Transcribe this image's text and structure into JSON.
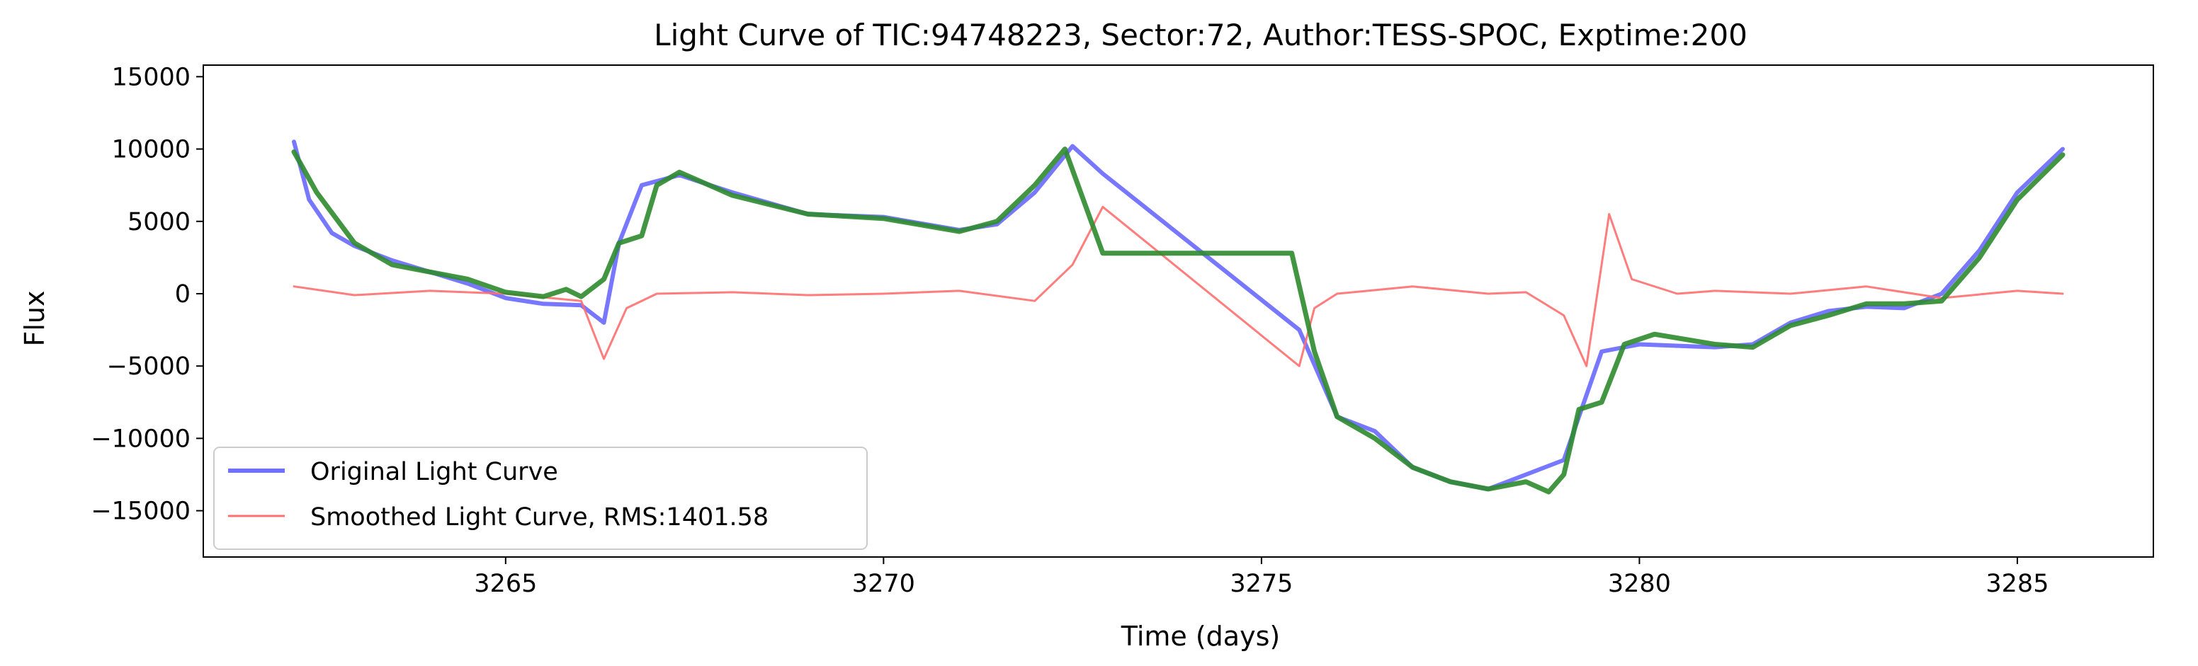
{
  "chart_data": {
    "type": "line",
    "title": "Light Curve of TIC:94748223, Sector:72, Author:TESS-SPOC, Exptime:200",
    "xlabel": "Time (days)",
    "ylabel": "Flux",
    "xlim": [
      3261.0,
      3286.8
    ],
    "ylim": [
      -18200,
      15800
    ],
    "xticks": [
      3265,
      3270,
      3275,
      3280,
      3285
    ],
    "xtick_labels": [
      "3265",
      "3270",
      "3275",
      "3280",
      "3285"
    ],
    "yticks": [
      -15000,
      -10000,
      -5000,
      0,
      5000,
      10000,
      15000
    ],
    "ytick_labels": [
      "−15000",
      "−10000",
      "−5000",
      "0",
      "5000",
      "10000",
      "15000"
    ],
    "grid": false,
    "legend_position": "lower-left",
    "series": [
      {
        "name": "Original Light Curve",
        "color": "#7070ff",
        "points": [
          [
            3262.2,
            10500
          ],
          [
            3262.4,
            6500
          ],
          [
            3262.7,
            4200
          ],
          [
            3263.0,
            3300
          ],
          [
            3263.5,
            2300
          ],
          [
            3264.0,
            1500
          ],
          [
            3264.5,
            700
          ],
          [
            3265.0,
            -300
          ],
          [
            3265.5,
            -700
          ],
          [
            3266.0,
            -800
          ],
          [
            3266.3,
            -2000
          ],
          [
            3266.5,
            3500
          ],
          [
            3266.8,
            7500
          ],
          [
            3267.3,
            8200
          ],
          [
            3268.0,
            7000
          ],
          [
            3269.0,
            5500
          ],
          [
            3270.0,
            5300
          ],
          [
            3271.0,
            4400
          ],
          [
            3271.5,
            4800
          ],
          [
            3272.0,
            7000
          ],
          [
            3272.5,
            10200
          ],
          [
            3272.9,
            8300
          ],
          [
            3275.5,
            -2500
          ],
          [
            3276.0,
            -8500
          ],
          [
            3276.5,
            -9500
          ],
          [
            3277.0,
            -12000
          ],
          [
            3277.5,
            -13000
          ],
          [
            3278.0,
            -13500
          ],
          [
            3278.5,
            -12500
          ],
          [
            3279.0,
            -11500
          ],
          [
            3279.3,
            -7000
          ],
          [
            3279.5,
            -4000
          ],
          [
            3280.0,
            -3500
          ],
          [
            3281.0,
            -3700
          ],
          [
            3281.5,
            -3500
          ],
          [
            3282.0,
            -2000
          ],
          [
            3282.5,
            -1200
          ],
          [
            3283.0,
            -900
          ],
          [
            3283.5,
            -1000
          ],
          [
            3284.0,
            0
          ],
          [
            3284.5,
            3000
          ],
          [
            3285.0,
            7000
          ],
          [
            3285.6,
            10000
          ]
        ]
      },
      {
        "name": "Smoothed Light Curve, RMS:1401.58",
        "color": "#ff6f6f",
        "points": [
          [
            3262.2,
            500
          ],
          [
            3263.0,
            -100
          ],
          [
            3264.0,
            200
          ],
          [
            3265.0,
            0
          ],
          [
            3266.0,
            -500
          ],
          [
            3266.3,
            -4500
          ],
          [
            3266.6,
            -1000
          ],
          [
            3267.0,
            0
          ],
          [
            3268.0,
            100
          ],
          [
            3269.0,
            -100
          ],
          [
            3270.0,
            0
          ],
          [
            3271.0,
            200
          ],
          [
            3272.0,
            -500
          ],
          [
            3272.5,
            2000
          ],
          [
            3272.9,
            6000
          ],
          [
            3275.5,
            -5000
          ],
          [
            3275.7,
            -1000
          ],
          [
            3276.0,
            0
          ],
          [
            3277.0,
            500
          ],
          [
            3278.0,
            0
          ],
          [
            3278.5,
            100
          ],
          [
            3279.0,
            -1500
          ],
          [
            3279.3,
            -5000
          ],
          [
            3279.6,
            5500
          ],
          [
            3279.9,
            1000
          ],
          [
            3280.5,
            0
          ],
          [
            3281.0,
            200
          ],
          [
            3282.0,
            0
          ],
          [
            3283.0,
            500
          ],
          [
            3284.0,
            -300
          ],
          [
            3285.0,
            200
          ],
          [
            3285.6,
            0
          ]
        ]
      },
      {
        "name": "",
        "color": "#2e8b2e",
        "points": [
          [
            3262.2,
            9800
          ],
          [
            3262.5,
            7000
          ],
          [
            3263.0,
            3500
          ],
          [
            3263.5,
            2000
          ],
          [
            3264.0,
            1500
          ],
          [
            3264.5,
            1000
          ],
          [
            3265.0,
            100
          ],
          [
            3265.5,
            -200
          ],
          [
            3265.8,
            300
          ],
          [
            3266.0,
            -200
          ],
          [
            3266.3,
            1000
          ],
          [
            3266.5,
            3500
          ],
          [
            3266.8,
            4000
          ],
          [
            3267.0,
            7500
          ],
          [
            3267.3,
            8400
          ],
          [
            3268.0,
            6800
          ],
          [
            3269.0,
            5500
          ],
          [
            3270.0,
            5200
          ],
          [
            3271.0,
            4300
          ],
          [
            3271.5,
            5000
          ],
          [
            3272.0,
            7500
          ],
          [
            3272.4,
            10000
          ],
          [
            3272.9,
            2800
          ],
          [
            3275.4,
            2800
          ],
          [
            3275.7,
            -4000
          ],
          [
            3276.0,
            -8500
          ],
          [
            3276.5,
            -10000
          ],
          [
            3277.0,
            -12000
          ],
          [
            3277.5,
            -13000
          ],
          [
            3278.0,
            -13500
          ],
          [
            3278.5,
            -13000
          ],
          [
            3278.8,
            -13700
          ],
          [
            3279.0,
            -12500
          ],
          [
            3279.2,
            -8000
          ],
          [
            3279.5,
            -7500
          ],
          [
            3279.8,
            -3500
          ],
          [
            3280.2,
            -2800
          ],
          [
            3281.0,
            -3500
          ],
          [
            3281.5,
            -3700
          ],
          [
            3282.0,
            -2200
          ],
          [
            3282.5,
            -1500
          ],
          [
            3283.0,
            -700
          ],
          [
            3283.5,
            -700
          ],
          [
            3284.0,
            -500
          ],
          [
            3284.5,
            2500
          ],
          [
            3285.0,
            6500
          ],
          [
            3285.6,
            9600
          ]
        ]
      }
    ]
  }
}
